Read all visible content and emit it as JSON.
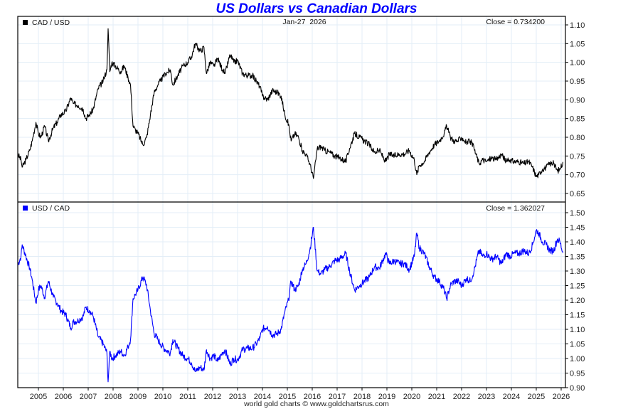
{
  "chart_data": [
    {
      "type": "line",
      "title": "US Dollars vs Canadian Dollars",
      "date_label": "Jan-27  2026",
      "legend": "CAD / USD",
      "legend_position": "top-left",
      "close_label": "Close = 0.734200",
      "color": "#000000",
      "ylim": [
        0.625,
        1.12
      ],
      "yticks": [
        "1.10",
        "1.05",
        "1.00",
        "0.95",
        "0.90",
        "0.85",
        "0.80",
        "0.75",
        "0.70",
        "0.65"
      ],
      "grid": true,
      "x": [
        2004.17,
        2004.3,
        2004.35,
        2004.5,
        2004.65,
        2004.75,
        2004.9,
        2005.0,
        2005.1,
        2005.25,
        2005.4,
        2005.6,
        2005.75,
        2005.9,
        2006.1,
        2006.3,
        2006.4,
        2006.6,
        2006.8,
        2006.9,
        2007.05,
        2007.2,
        2007.4,
        2007.6,
        2007.75,
        2007.8,
        2007.87,
        2007.95,
        2008.1,
        2008.3,
        2008.45,
        2008.6,
        2008.7,
        2008.8,
        2008.9,
        2009.0,
        2009.2,
        2009.35,
        2009.5,
        2009.65,
        2009.8,
        2009.9,
        2010.1,
        2010.3,
        2010.4,
        2010.6,
        2010.8,
        2011.0,
        2011.15,
        2011.3,
        2011.5,
        2011.65,
        2011.75,
        2011.9,
        2012.05,
        2012.2,
        2012.4,
        2012.5,
        2012.7,
        2012.85,
        2013.0,
        2013.2,
        2013.4,
        2013.6,
        2013.75,
        2013.9,
        2014.0,
        2014.2,
        2014.4,
        2014.6,
        2014.75,
        2014.9,
        2015.05,
        2015.15,
        2015.3,
        2015.45,
        2015.6,
        2015.75,
        2015.9,
        2016.05,
        2016.2,
        2016.35,
        2016.5,
        2016.7,
        2016.9,
        2017.1,
        2017.35,
        2017.5,
        2017.7,
        2017.9,
        2018.1,
        2018.3,
        2018.5,
        2018.7,
        2018.95,
        2019.1,
        2019.3,
        2019.5,
        2019.7,
        2019.9,
        2020.1,
        2020.2,
        2020.3,
        2020.5,
        2020.7,
        2020.9,
        2021.1,
        2021.3,
        2021.4,
        2021.55,
        2021.7,
        2021.85,
        2022.0,
        2022.2,
        2022.35,
        2022.5,
        2022.7,
        2022.85,
        2023.0,
        2023.2,
        2023.4,
        2023.6,
        2023.8,
        2023.95,
        2024.1,
        2024.3,
        2024.5,
        2024.7,
        2024.85,
        2025.0,
        2025.1,
        2025.25,
        2025.4,
        2025.55,
        2025.7,
        2025.85,
        2025.95,
        2026.07
      ],
      "values": [
        0.755,
        0.74,
        0.72,
        0.74,
        0.765,
        0.79,
        0.84,
        0.81,
        0.8,
        0.83,
        0.79,
        0.825,
        0.84,
        0.86,
        0.87,
        0.905,
        0.89,
        0.885,
        0.875,
        0.85,
        0.86,
        0.875,
        0.93,
        0.95,
        0.98,
        1.09,
        0.975,
        1.0,
        0.99,
        0.975,
        0.99,
        0.96,
        0.94,
        0.83,
        0.82,
        0.81,
        0.78,
        0.8,
        0.86,
        0.92,
        0.94,
        0.95,
        0.97,
        0.98,
        0.94,
        0.965,
        0.99,
        1.0,
        1.015,
        1.05,
        1.03,
        1.04,
        0.97,
        1.0,
        0.99,
        1.01,
        0.98,
        0.97,
        1.02,
        1.0,
        1.005,
        0.97,
        0.965,
        0.965,
        0.95,
        0.935,
        0.91,
        0.9,
        0.925,
        0.92,
        0.91,
        0.86,
        0.835,
        0.79,
        0.81,
        0.8,
        0.765,
        0.755,
        0.73,
        0.69,
        0.77,
        0.775,
        0.765,
        0.76,
        0.75,
        0.745,
        0.735,
        0.77,
        0.81,
        0.8,
        0.79,
        0.78,
        0.76,
        0.765,
        0.735,
        0.755,
        0.75,
        0.755,
        0.755,
        0.765,
        0.74,
        0.7,
        0.725,
        0.735,
        0.76,
        0.78,
        0.79,
        0.81,
        0.83,
        0.8,
        0.79,
        0.79,
        0.8,
        0.785,
        0.79,
        0.77,
        0.73,
        0.74,
        0.735,
        0.745,
        0.74,
        0.755,
        0.735,
        0.74,
        0.735,
        0.735,
        0.73,
        0.735,
        0.72,
        0.695,
        0.7,
        0.715,
        0.72,
        0.73,
        0.73,
        0.71,
        0.715,
        0.734
      ]
    },
    {
      "type": "line",
      "legend": "USD / CAD",
      "legend_position": "top-left",
      "close_label": "Close = 1.362027",
      "color": "#0000ff",
      "ylim": [
        0.9,
        1.52
      ],
      "yticks": [
        "1.50",
        "1.45",
        "1.40",
        "1.35",
        "1.30",
        "1.25",
        "1.20",
        "1.15",
        "1.10",
        "1.05",
        "1.00",
        "0.95",
        "0.90"
      ],
      "xticks": [
        "2005",
        "2006",
        "2007",
        "2008",
        "2009",
        "2010",
        "2011",
        "2012",
        "2013",
        "2014",
        "2015",
        "2016",
        "2017",
        "2018",
        "2019",
        "2020",
        "2021",
        "2022",
        "2023",
        "2024",
        "2025",
        "2026"
      ],
      "xlim": [
        2004.17,
        2026.15
      ],
      "grid": true,
      "x": [
        2004.17,
        2004.3,
        2004.35,
        2004.5,
        2004.65,
        2004.75,
        2004.9,
        2005.0,
        2005.1,
        2005.25,
        2005.4,
        2005.6,
        2005.75,
        2005.9,
        2006.1,
        2006.3,
        2006.4,
        2006.6,
        2006.8,
        2006.9,
        2007.05,
        2007.2,
        2007.4,
        2007.6,
        2007.75,
        2007.8,
        2007.87,
        2007.95,
        2008.1,
        2008.3,
        2008.45,
        2008.6,
        2008.7,
        2008.8,
        2008.9,
        2009.0,
        2009.2,
        2009.35,
        2009.5,
        2009.65,
        2009.8,
        2009.9,
        2010.1,
        2010.3,
        2010.4,
        2010.6,
        2010.8,
        2011.0,
        2011.15,
        2011.3,
        2011.5,
        2011.65,
        2011.75,
        2011.9,
        2012.05,
        2012.2,
        2012.4,
        2012.5,
        2012.7,
        2012.85,
        2013.0,
        2013.2,
        2013.4,
        2013.6,
        2013.75,
        2013.9,
        2014.0,
        2014.2,
        2014.4,
        2014.6,
        2014.75,
        2014.9,
        2015.05,
        2015.15,
        2015.3,
        2015.45,
        2015.6,
        2015.75,
        2015.9,
        2016.05,
        2016.2,
        2016.35,
        2016.5,
        2016.7,
        2016.9,
        2017.1,
        2017.35,
        2017.5,
        2017.7,
        2017.9,
        2018.1,
        2018.3,
        2018.5,
        2018.7,
        2018.95,
        2019.1,
        2019.3,
        2019.5,
        2019.7,
        2019.9,
        2020.1,
        2020.2,
        2020.3,
        2020.5,
        2020.7,
        2020.9,
        2021.1,
        2021.3,
        2021.4,
        2021.55,
        2021.7,
        2021.85,
        2022.0,
        2022.2,
        2022.35,
        2022.5,
        2022.7,
        2022.85,
        2023.0,
        2023.2,
        2023.4,
        2023.6,
        2023.8,
        2023.95,
        2024.1,
        2024.3,
        2024.5,
        2024.7,
        2024.85,
        2025.0,
        2025.1,
        2025.25,
        2025.4,
        2025.55,
        2025.7,
        2025.85,
        2025.95,
        2026.07
      ],
      "values": [
        1.32,
        1.35,
        1.39,
        1.35,
        1.31,
        1.27,
        1.19,
        1.235,
        1.25,
        1.21,
        1.265,
        1.21,
        1.19,
        1.165,
        1.15,
        1.105,
        1.125,
        1.13,
        1.145,
        1.175,
        1.165,
        1.145,
        1.075,
        1.05,
        1.02,
        0.92,
        1.025,
        1.0,
        1.01,
        1.025,
        1.01,
        1.04,
        1.065,
        1.205,
        1.22,
        1.235,
        1.28,
        1.25,
        1.165,
        1.085,
        1.065,
        1.05,
        1.03,
        1.02,
        1.065,
        1.035,
        1.01,
        1.0,
        0.985,
        0.955,
        0.97,
        0.96,
        1.03,
        1.0,
        1.01,
        0.99,
        1.02,
        1.03,
        0.98,
        1.0,
        0.995,
        1.03,
        1.035,
        1.035,
        1.05,
        1.07,
        1.1,
        1.11,
        1.08,
        1.085,
        1.1,
        1.16,
        1.2,
        1.265,
        1.235,
        1.25,
        1.305,
        1.325,
        1.37,
        1.45,
        1.3,
        1.29,
        1.305,
        1.315,
        1.335,
        1.34,
        1.36,
        1.3,
        1.235,
        1.25,
        1.265,
        1.28,
        1.315,
        1.31,
        1.36,
        1.325,
        1.335,
        1.325,
        1.325,
        1.305,
        1.35,
        1.43,
        1.38,
        1.36,
        1.315,
        1.28,
        1.265,
        1.235,
        1.205,
        1.25,
        1.265,
        1.265,
        1.25,
        1.275,
        1.265,
        1.3,
        1.37,
        1.35,
        1.36,
        1.34,
        1.35,
        1.325,
        1.36,
        1.35,
        1.36,
        1.36,
        1.37,
        1.36,
        1.39,
        1.44,
        1.43,
        1.4,
        1.39,
        1.37,
        1.37,
        1.41,
        1.4,
        1.362
      ]
    }
  ],
  "footer": "world gold charts © www.goldchartsrus.com"
}
